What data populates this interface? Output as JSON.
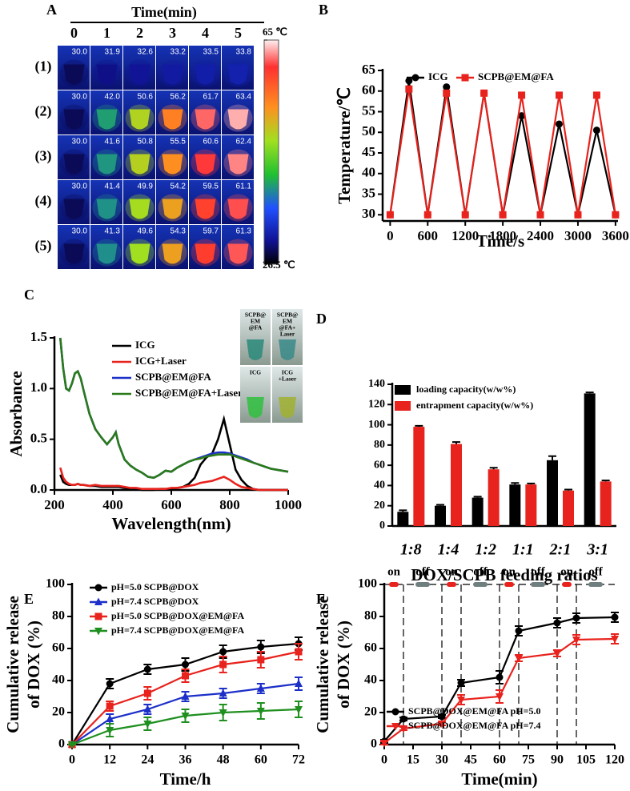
{
  "chart_data": [
    {
      "type": "thermal_grid",
      "panel": "A",
      "xlabel": "Time(min)",
      "categories": [
        "0",
        "1",
        "2",
        "3",
        "4",
        "5"
      ],
      "rows": [
        "(1)",
        "(2)",
        "(3)",
        "(4)",
        "(5)"
      ],
      "values": [
        [
          30.0,
          31.9,
          32.6,
          33.2,
          33.5,
          33.8
        ],
        [
          30.0,
          42.0,
          50.6,
          56.2,
          61.7,
          63.4
        ],
        [
          30.0,
          41.6,
          50.8,
          55.5,
          60.6,
          62.4
        ],
        [
          30.0,
          41.4,
          49.9,
          54.2,
          59.5,
          61.1
        ],
        [
          30.0,
          41.3,
          49.6,
          54.3,
          59.7,
          61.3
        ]
      ],
      "value_labels": [
        [
          "30.0",
          "31.9",
          "32.6",
          "33.2",
          "33.5",
          "33.8"
        ],
        [
          "30.0",
          "42.0",
          "50.6",
          "56.2",
          "61.7",
          "63.4"
        ],
        [
          "30.0",
          "41.6",
          "50.8",
          "55.5",
          "60.6",
          "62.4"
        ],
        [
          "30.0",
          "41.4",
          "49.9",
          "54.2",
          "59.5",
          "61.1"
        ],
        [
          "30.0",
          "41.3",
          "49.6",
          "54.3",
          "59.7",
          "61.3"
        ]
      ],
      "colorbar_ticks": [
        {
          "value": 65,
          "label": "65 ℃"
        },
        {
          "value": 26.5,
          "label": "26.5 ℃"
        }
      ]
    },
    {
      "type": "line",
      "panel": "B",
      "xlabel": "Time/s",
      "ylabel": "Temperature/℃",
      "x": [
        0,
        300,
        600,
        900,
        1200,
        1500,
        1800,
        2100,
        2400,
        2700,
        3000,
        3300,
        3600
      ],
      "series": [
        {
          "name": "ICG",
          "color": "#000000",
          "marker": "circle",
          "values": [
            30,
            62.5,
            30,
            61,
            30,
            59.5,
            30,
            54,
            30,
            52,
            30,
            50.5,
            30
          ]
        },
        {
          "name": "SCPB@EM@FA",
          "color": "#e8221c",
          "marker": "square",
          "values": [
            30,
            60.5,
            30,
            59.5,
            30,
            59.5,
            30,
            59,
            30,
            59,
            30,
            59,
            30
          ]
        }
      ],
      "xlim": [
        -120,
        3640
      ],
      "ylim": [
        28.5,
        65
      ],
      "xticks": [
        0,
        600,
        1200,
        1800,
        2400,
        3000,
        3600
      ],
      "yticks": [
        30,
        35,
        40,
        45,
        50,
        55,
        60,
        65
      ],
      "legend": "upper center"
    },
    {
      "type": "line",
      "panel": "C",
      "xlabel": "Wavelength(nm)",
      "ylabel": "Absorbance",
      "x": [
        220,
        230,
        240,
        250,
        260,
        270,
        280,
        290,
        300,
        320,
        340,
        360,
        380,
        400,
        410,
        420,
        440,
        460,
        480,
        500,
        520,
        540,
        560,
        580,
        600,
        620,
        640,
        660,
        680,
        700,
        720,
        740,
        760,
        780,
        800,
        820,
        840,
        860,
        880,
        900,
        920,
        940,
        960,
        980,
        1000
      ],
      "series": [
        {
          "name": "ICG",
          "color": "#000000",
          "values": [
            0.15,
            0.08,
            0.06,
            0.05,
            0.05,
            0.05,
            0.06,
            0.05,
            0.05,
            0.04,
            0.04,
            0.03,
            0.03,
            0.03,
            0.03,
            0.03,
            0.02,
            0.01,
            0.01,
            0,
            0,
            0,
            0.01,
            0.01,
            0.01,
            0.02,
            0.03,
            0.06,
            0.12,
            0.25,
            0.32,
            0.36,
            0.5,
            0.7,
            0.45,
            0.2,
            0.1,
            0.04,
            0.01,
            0,
            0,
            0,
            0,
            0,
            0
          ]
        },
        {
          "name": "ICG+Laser",
          "color": "#e8221c",
          "values": [
            0.22,
            0.12,
            0.08,
            0.06,
            0.05,
            0.05,
            0.06,
            0.05,
            0.05,
            0.04,
            0.05,
            0.04,
            0.04,
            0.04,
            0.04,
            0.04,
            0.03,
            0.02,
            0.02,
            0.01,
            0.01,
            0.01,
            0.01,
            0.01,
            0.02,
            0.02,
            0.03,
            0.04,
            0.05,
            0.07,
            0.08,
            0.09,
            0.11,
            0.13,
            0.1,
            0.06,
            0.03,
            0.02,
            0.01,
            0,
            0,
            0,
            0,
            0,
            0
          ]
        },
        {
          "name": "SCPB@EM@FA",
          "color": "#1c2fc9",
          "values": [
            1.5,
            1.2,
            1.0,
            0.98,
            1.05,
            1.15,
            1.17,
            1.1,
            0.98,
            0.75,
            0.6,
            0.52,
            0.45,
            0.52,
            0.57,
            0.45,
            0.3,
            0.24,
            0.2,
            0.17,
            0.13,
            0.12,
            0.15,
            0.19,
            0.18,
            0.22,
            0.25,
            0.28,
            0.3,
            0.32,
            0.34,
            0.36,
            0.37,
            0.37,
            0.36,
            0.34,
            0.32,
            0.3,
            0.27,
            0.25,
            0.23,
            0.21,
            0.2,
            0.19,
            0.18
          ]
        },
        {
          "name": "SCPB@EM@FA+Laser",
          "color": "#2a7a1a",
          "values": [
            1.5,
            1.2,
            1.0,
            0.98,
            1.05,
            1.15,
            1.17,
            1.1,
            0.98,
            0.75,
            0.6,
            0.52,
            0.45,
            0.52,
            0.57,
            0.45,
            0.3,
            0.24,
            0.2,
            0.17,
            0.13,
            0.12,
            0.15,
            0.19,
            0.18,
            0.22,
            0.25,
            0.28,
            0.3,
            0.31,
            0.33,
            0.34,
            0.35,
            0.35,
            0.35,
            0.33,
            0.31,
            0.29,
            0.27,
            0.25,
            0.23,
            0.21,
            0.2,
            0.19,
            0.18
          ]
        }
      ],
      "xlim": [
        200,
        1000
      ],
      "ylim": [
        0,
        1.5
      ],
      "xticks": [
        200,
        400,
        600,
        800,
        1000
      ],
      "yticks": [
        {
          "value": 0,
          "label": "0.0"
        },
        0.5,
        {
          "value": 1,
          "label": "1.0"
        },
        1.5
      ],
      "legend": "upper center",
      "photo_labels": [
        [
          "SCPB@",
          "EM",
          "@FA"
        ],
        [
          "SCPB@",
          "EM",
          "@FA+",
          "Laser"
        ],
        [
          "ICG"
        ],
        [
          "ICG",
          "+Laser"
        ]
      ]
    },
    {
      "type": "bar",
      "panel": "D",
      "xlabel": "DOX/SCPB feeding ratios",
      "categories": [
        "1:8",
        "1:4",
        "1:2",
        "1:1",
        "2:1",
        "3:1"
      ],
      "series": [
        {
          "name": "loading capacity(w/w%)",
          "color": "#000000",
          "values": [
            14,
            20,
            28,
            41,
            65,
            131
          ],
          "errors": [
            1.5,
            1,
            1,
            1.5,
            4,
            1
          ]
        },
        {
          "name": "entrapment capacity(w/w%)",
          "color": "#e8221c",
          "values": [
            98,
            81,
            56,
            41,
            35,
            44
          ],
          "errors": [
            1,
            2,
            1.5,
            1,
            1,
            1
          ]
        }
      ],
      "ylim": [
        0,
        140
      ],
      "yticks": [
        0,
        20,
        40,
        60,
        80,
        100,
        120,
        140
      ],
      "legend": "upper left"
    },
    {
      "type": "line",
      "panel": "E",
      "xlabel": "Time/h",
      "ylabel": [
        "Cumulative release",
        "of DOX (%)"
      ],
      "x": [
        0,
        12,
        24,
        36,
        48,
        60,
        72
      ],
      "series": [
        {
          "name": "pH=5.0 SCPB@DOX",
          "color": "#000000",
          "marker": "circle",
          "values": [
            0,
            38,
            47,
            50,
            58,
            61,
            63
          ],
          "errors": [
            0,
            3,
            3,
            4,
            4,
            4,
            4
          ]
        },
        {
          "name": "pH=7.4 SCPB@DOX",
          "color": "#1c2fc9",
          "marker": "triangle",
          "values": [
            0,
            16,
            22,
            30,
            32,
            35,
            38
          ],
          "errors": [
            0,
            3,
            3,
            3,
            3,
            3,
            4
          ]
        },
        {
          "name": "pH=5.0 SCPB@DOX@EM@FA",
          "color": "#e8221c",
          "marker": "square",
          "values": [
            0,
            24,
            32,
            43,
            50,
            53,
            58
          ],
          "errors": [
            0,
            3,
            4,
            4,
            5,
            5,
            5
          ]
        },
        {
          "name": "pH=7.4 SCPB@DOX@EM@FA",
          "color": "#1f8f1f",
          "marker": "triangle-down",
          "values": [
            0,
            9,
            13,
            18,
            20,
            21,
            22
          ],
          "errors": [
            0,
            4,
            4,
            4,
            5,
            5,
            5
          ]
        }
      ],
      "xlim": [
        0,
        72
      ],
      "ylim": [
        0,
        100
      ],
      "xticks": [
        0,
        12,
        24,
        36,
        48,
        60,
        72
      ],
      "yticks": [
        0,
        20,
        40,
        60,
        80,
        100
      ],
      "legend": "upper left"
    },
    {
      "type": "line",
      "panel": "F",
      "xlabel": "Time(min)",
      "ylabel": [
        "Cumulative release",
        "of DOX (%)"
      ],
      "x": [
        0,
        10,
        30,
        40,
        60,
        70,
        90,
        100,
        120
      ],
      "series": [
        {
          "name": "SCPB@DOX@EM@FA pH=5.0",
          "color": "#000000",
          "marker": "circle",
          "values": [
            2,
            16,
            17.5,
            38.5,
            42,
            71,
            76,
            79,
            79.5
          ],
          "errors": [
            1,
            1,
            1,
            2,
            4,
            3,
            3,
            3,
            3
          ]
        },
        {
          "name": "SCPB@DOX@EM@FA pH=7.4",
          "color": "#e8221c",
          "marker": "triangle-down",
          "values": [
            1,
            10,
            13,
            28,
            30,
            54,
            57,
            65.5,
            66
          ],
          "errors": [
            1,
            1,
            1,
            3,
            4,
            2,
            2,
            3,
            3
          ]
        }
      ],
      "xlim": [
        0,
        120
      ],
      "ylim": [
        0,
        100
      ],
      "xticks": [
        0,
        15,
        30,
        45,
        60,
        75,
        90,
        105,
        120
      ],
      "yticks": [
        0,
        20,
        40,
        60,
        80,
        100
      ],
      "legend": "lower right",
      "switch_times": [
        10,
        30,
        40,
        60,
        70,
        90,
        100
      ],
      "annotations": [
        "on",
        "off",
        "on",
        "off",
        "on",
        "off",
        "on",
        "off"
      ]
    }
  ]
}
